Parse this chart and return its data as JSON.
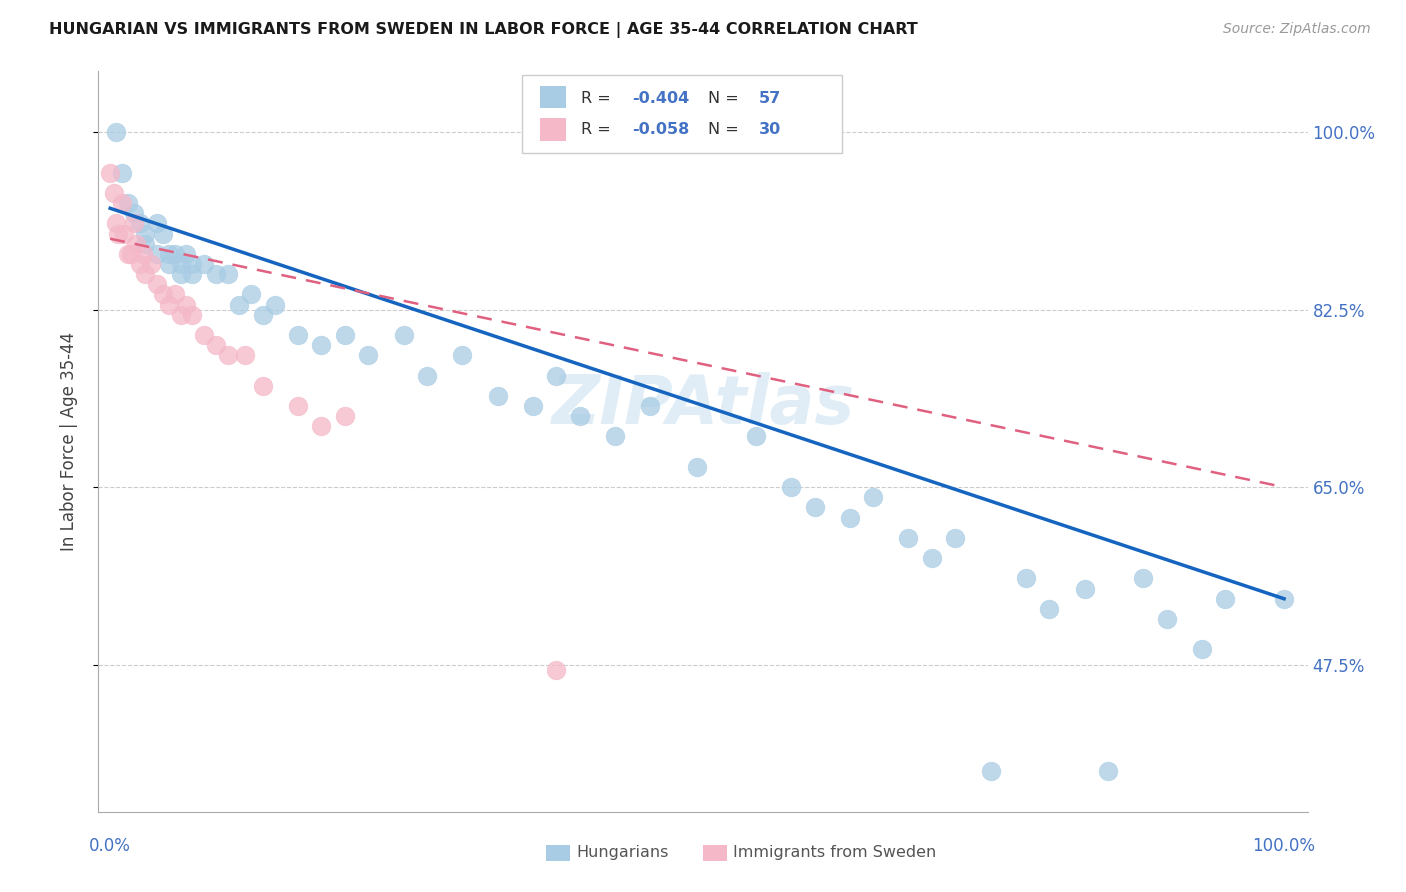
{
  "title": "HUNGARIAN VS IMMIGRANTS FROM SWEDEN IN LABOR FORCE | AGE 35-44 CORRELATION CHART",
  "source": "Source: ZipAtlas.com",
  "ylabel": "In Labor Force | Age 35-44",
  "ytick_vals": [
    0.475,
    0.65,
    0.825,
    1.0
  ],
  "ytick_labels": [
    "47.5%",
    "65.0%",
    "82.5%",
    "100.0%"
  ],
  "blue_R": "-0.404",
  "blue_N": "57",
  "pink_R": "-0.058",
  "pink_N": "30",
  "blue_color": "#a8cce4",
  "pink_color": "#f4b8c8",
  "blue_line_color": "#1565c0",
  "pink_line_color": "#e06080",
  "legend_blue_label": "Hungarians",
  "legend_pink_label": "Immigrants from Sweden",
  "watermark": "ZIPAtlas",
  "blue_x": [
    0.005,
    0.01,
    0.015,
    0.02,
    0.025,
    0.03,
    0.03,
    0.04,
    0.04,
    0.045,
    0.05,
    0.05,
    0.055,
    0.06,
    0.06,
    0.065,
    0.07,
    0.07,
    0.08,
    0.09,
    0.1,
    0.11,
    0.12,
    0.13,
    0.14,
    0.16,
    0.18,
    0.2,
    0.22,
    0.25,
    0.27,
    0.3,
    0.33,
    0.36,
    0.38,
    0.4,
    0.43,
    0.46,
    0.5,
    0.55,
    0.58,
    0.6,
    0.63,
    0.65,
    0.68,
    0.7,
    0.72,
    0.75,
    0.78,
    0.8,
    0.83,
    0.85,
    0.88,
    0.9,
    0.93,
    0.95,
    1.0
  ],
  "blue_y": [
    1.0,
    0.96,
    0.93,
    0.92,
    0.91,
    0.9,
    0.89,
    0.91,
    0.88,
    0.9,
    0.87,
    0.88,
    0.88,
    0.87,
    0.86,
    0.88,
    0.87,
    0.86,
    0.87,
    0.86,
    0.86,
    0.83,
    0.84,
    0.82,
    0.83,
    0.8,
    0.79,
    0.8,
    0.78,
    0.8,
    0.76,
    0.78,
    0.74,
    0.73,
    0.76,
    0.72,
    0.7,
    0.73,
    0.67,
    0.7,
    0.65,
    0.63,
    0.62,
    0.64,
    0.6,
    0.58,
    0.6,
    0.37,
    0.56,
    0.53,
    0.55,
    0.37,
    0.56,
    0.52,
    0.49,
    0.54,
    0.54
  ],
  "pink_x": [
    0.0,
    0.003,
    0.005,
    0.007,
    0.01,
    0.012,
    0.015,
    0.018,
    0.02,
    0.022,
    0.025,
    0.028,
    0.03,
    0.035,
    0.04,
    0.045,
    0.05,
    0.055,
    0.06,
    0.065,
    0.07,
    0.08,
    0.09,
    0.1,
    0.115,
    0.13,
    0.16,
    0.18,
    0.2,
    0.38
  ],
  "pink_y": [
    0.96,
    0.94,
    0.91,
    0.9,
    0.93,
    0.9,
    0.88,
    0.88,
    0.91,
    0.89,
    0.87,
    0.88,
    0.86,
    0.87,
    0.85,
    0.84,
    0.83,
    0.84,
    0.82,
    0.83,
    0.82,
    0.8,
    0.79,
    0.78,
    0.78,
    0.75,
    0.73,
    0.71,
    0.72,
    0.47
  ],
  "blue_line_x0": 0.0,
  "blue_line_x1": 1.0,
  "blue_line_y0": 0.925,
  "blue_line_y1": 0.54,
  "pink_line_x0": 0.0,
  "pink_line_x1": 1.0,
  "pink_line_y0": 0.895,
  "pink_line_y1": 0.65,
  "xlim": [
    -0.01,
    1.02
  ],
  "ylim": [
    0.33,
    1.06
  ],
  "r_color": "#4472c4",
  "n_color": "#4472c4"
}
